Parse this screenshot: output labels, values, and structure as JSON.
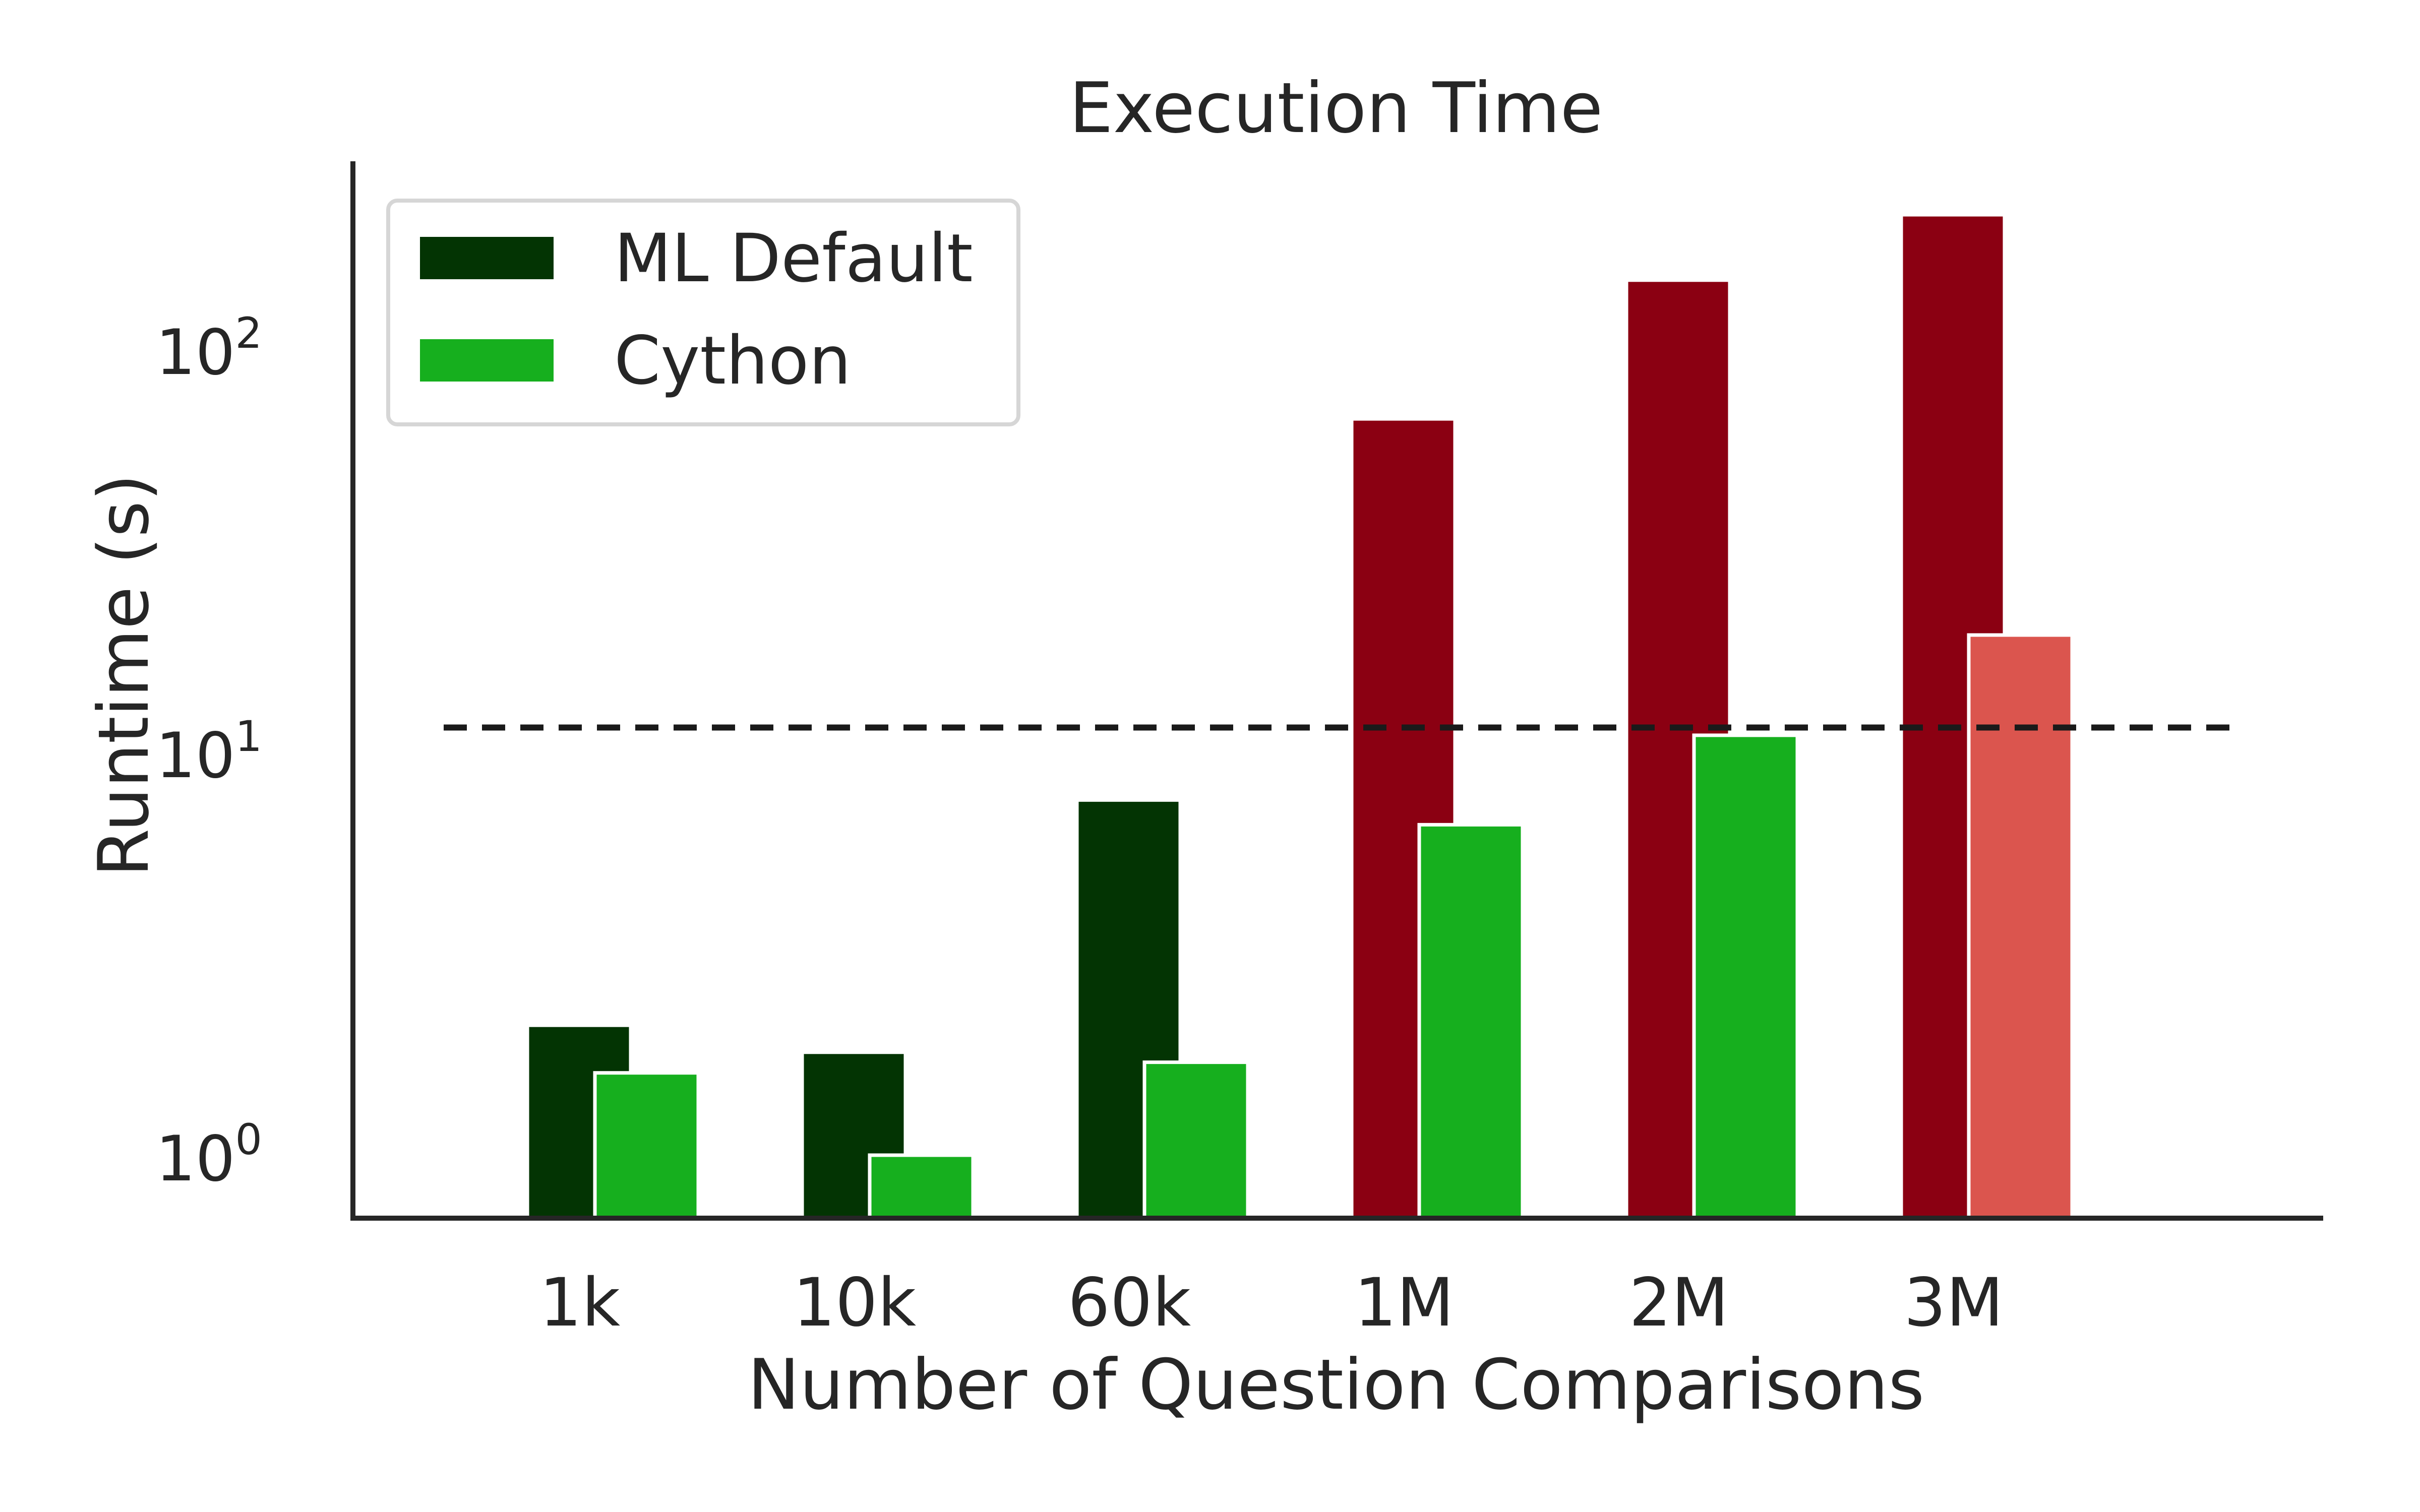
{
  "chart_data": {
    "type": "bar",
    "title": "Execution Time",
    "xlabel": "Number of Question Comparisons",
    "ylabel": "Runtime (s)",
    "yscale": "log",
    "ylim": [
      0.8,
      300
    ],
    "yticks": [
      1,
      10,
      100
    ],
    "ytick_labels": [
      {
        "base": "10",
        "exp": "0"
      },
      {
        "base": "10",
        "exp": "1"
      },
      {
        "base": "10",
        "exp": "2"
      }
    ],
    "categories": [
      "1k",
      "10k",
      "60k",
      "1M",
      "2M",
      "3M"
    ],
    "series": [
      {
        "name": "ML Default",
        "values": [
          2.1,
          1.8,
          7.6,
          67,
          148,
          215
        ],
        "colors": [
          "#033403",
          "#033403",
          "#033403",
          "#8b0012",
          "#8b0012",
          "#8b0012"
        ]
      },
      {
        "name": "Cython",
        "values": [
          1.6,
          1.0,
          1.7,
          6.6,
          11.0,
          19.5
        ],
        "colors": [
          "#16af1e",
          "#16af1e",
          "#16af1e",
          "#16af1e",
          "#16af1e",
          "#db554e"
        ]
      }
    ],
    "threshold": {
      "value": 11.5,
      "style": "dashed",
      "color": "#1a1a1a"
    },
    "legend": {
      "position": "top-left",
      "entries": [
        {
          "label": "ML Default",
          "color": "#033403"
        },
        {
          "label": "Cython",
          "color": "#16af1e"
        }
      ]
    },
    "grid": false
  }
}
